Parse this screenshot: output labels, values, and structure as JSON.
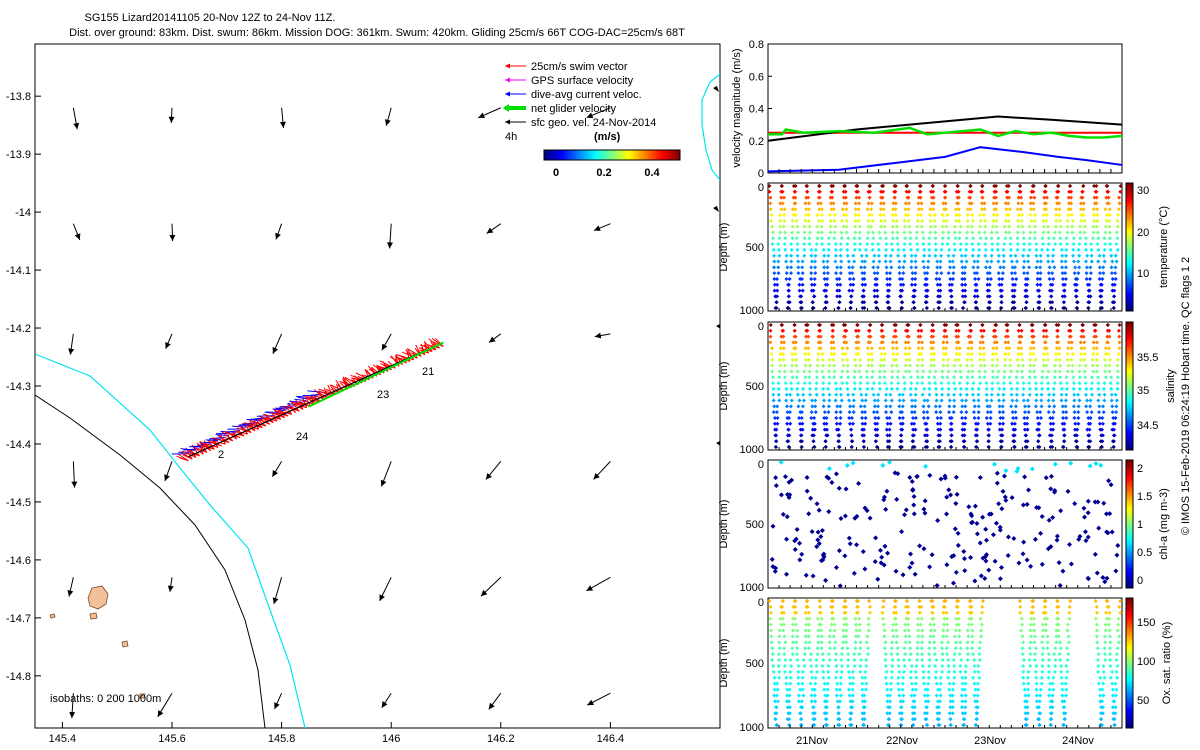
{
  "header": {
    "title": "SG155 Lizard20141105 20-Nov 12Z to 24-Nov 11Z.",
    "subtitle": "Dist. over ground: 83km. Dist. swum: 86km. Mission DOG: 361km. Swum: 420km. Gliding 25cm/s 66T COG-DAC=25cm/s 68T"
  },
  "colors": {
    "swim": "#ff0000",
    "gps": "#ff00ff",
    "dac": "#0000ff",
    "net": "#00e000",
    "geo": "#000000",
    "isobath0": "#00e5ee",
    "isobath1000": "#000000",
    "reef": "#f2c09a"
  },
  "chart_data": [
    {
      "type": "scatter",
      "name": "track map",
      "xlim": [
        145.35,
        146.6
      ],
      "ylim": [
        -14.89,
        -13.71
      ],
      "xticks": [
        "145.4",
        "145.6",
        "145.8",
        "146",
        "146.2",
        "146.4"
      ],
      "yticks": [
        "-13.8",
        "-13.9",
        "-14",
        "-14.1",
        "-14.2",
        "-14.3",
        "-14.4",
        "-14.5",
        "-14.6",
        "-14.7",
        "-14.8"
      ],
      "legend": [
        {
          "label": "25cm/s swim vector",
          "color": "#ff0000"
        },
        {
          "label": "GPS surface velocity",
          "color": "#ff00ff"
        },
        {
          "label": "dive-avg current veloc.",
          "color": "#0000ff"
        },
        {
          "label": "net glider velocity",
          "color": "#00e000"
        },
        {
          "label": "sfc geo. vel. 24-Nov-2014",
          "color": "#000000"
        }
      ],
      "scale_label": "4h",
      "colorbar": {
        "title": "(m/s)",
        "ticks": [
          "0",
          "0.2",
          "0.4"
        ],
        "range": [
          -0.02,
          0.5
        ]
      },
      "track": {
        "start": [
          145.63,
          -14.422
        ],
        "end": [
          146.095,
          -14.225
        ]
      },
      "day_labels": [
        {
          "text": "21",
          "lon": 146.06,
          "lat": -14.26
        },
        {
          "text": "23",
          "lon": 145.88,
          "lat": -14.31
        },
        {
          "text": "24",
          "lon": 145.8,
          "lat": -14.375
        },
        {
          "text": "2",
          "lon": 145.66,
          "lat": -14.425
        }
      ],
      "isobath_label": "isobaths: 0   200  1000m",
      "geo_columns": [
        145.42,
        145.6,
        145.8,
        146.0,
        146.2,
        146.4
      ],
      "geo_rows": [
        -13.82,
        -14.02,
        -14.21,
        -14.43,
        -14.63,
        -14.83
      ]
    },
    {
      "type": "line",
      "name": "velocity panel",
      "ylabel": "velocity magnitude (m/s)",
      "ylim": [
        0,
        0.8
      ],
      "yticks": [
        "0",
        "0.2",
        "0.4",
        "0.6",
        "0.8"
      ],
      "series": [
        {
          "name": "swim",
          "color": "#ff0000",
          "t": [
            0,
            1
          ],
          "v": [
            0.25,
            0.25
          ]
        },
        {
          "name": "sfc geo",
          "color": "#000000",
          "t": [
            0,
            0.25,
            0.5,
            0.65,
            0.8,
            1
          ],
          "v": [
            0.2,
            0.27,
            0.32,
            0.35,
            0.33,
            0.3
          ]
        },
        {
          "name": "dac",
          "color": "#0000ff",
          "t": [
            0,
            0.2,
            0.35,
            0.5,
            0.6,
            0.72,
            0.82,
            0.9,
            1
          ],
          "v": [
            0.01,
            0.02,
            0.06,
            0.1,
            0.16,
            0.13,
            0.1,
            0.08,
            0.05
          ]
        },
        {
          "name": "net",
          "color": "#00e000",
          "t": [
            0,
            0.04,
            0.05,
            0.1,
            0.2,
            0.3,
            0.4,
            0.45,
            0.5,
            0.55,
            0.6,
            0.65,
            0.7,
            0.75,
            0.8,
            0.85,
            0.9,
            0.95,
            1
          ],
          "v": [
            0.24,
            0.24,
            0.27,
            0.25,
            0.26,
            0.25,
            0.28,
            0.24,
            0.25,
            0.26,
            0.27,
            0.23,
            0.26,
            0.24,
            0.25,
            0.23,
            0.22,
            0.22,
            0.23
          ]
        }
      ]
    },
    {
      "type": "scatter",
      "name": "temperature section",
      "ylabel": "Depth (m)",
      "clabel": "temperature (°C)",
      "yticks": [
        "0",
        "500",
        "1000"
      ],
      "cticks": [
        "30",
        "20",
        "10"
      ],
      "crange": [
        4,
        30
      ],
      "ncycles": 28,
      "pattern": "sawtooth"
    },
    {
      "type": "scatter",
      "name": "salinity section",
      "ylabel": "Depth (m)",
      "clabel": "salinity",
      "yticks": [
        "0",
        "500",
        "1000"
      ],
      "cticks": [
        "35.5",
        "35",
        "34.5"
      ],
      "crange": [
        34.3,
        35.9
      ],
      "ncycles": 28,
      "pattern": "sawtooth"
    },
    {
      "type": "scatter",
      "name": "chlorophyll section",
      "ylabel": "Depth (m)",
      "clabel": "chl-a (mg m-3)",
      "yticks": [
        "0",
        "500",
        "1000"
      ],
      "cticks": [
        "2",
        "1.5",
        "1",
        "0.5",
        "0"
      ],
      "crange": [
        0,
        2
      ],
      "pattern": "sparse"
    },
    {
      "type": "scatter",
      "name": "oxygen section",
      "ylabel": "Depth (m)",
      "clabel": "Ox. sat. ratio (%)",
      "yticks": [
        "0",
        "500",
        "1000"
      ],
      "cticks": [
        "150",
        "100",
        "50"
      ],
      "crange": [
        20,
        175
      ],
      "pattern": "sawtooth-gaps",
      "xticks": [
        "21Nov",
        "22Nov",
        "23Nov",
        "24Nov"
      ]
    }
  ],
  "side_note": "© IMOS 15-Feb-2019 06:24:19 Hobart time. QC flags 1  2"
}
